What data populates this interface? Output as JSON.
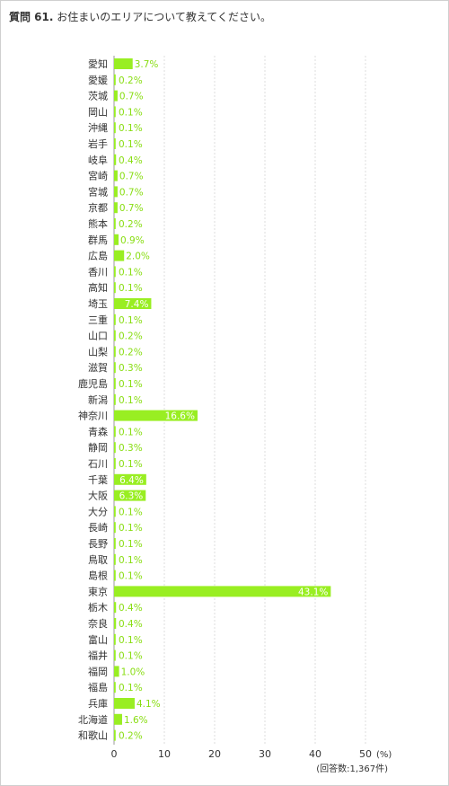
{
  "question": {
    "number": "質問 61.",
    "text": "お住まいのエリアについて教えてください。"
  },
  "colors": {
    "bar": "#99ee22",
    "label_outside": "#88dd11",
    "label_inside": "#ffffff",
    "grid": "#dddddd",
    "axis": "#999999"
  },
  "chart_data": {
    "type": "bar",
    "orientation": "horizontal",
    "categories": [
      "愛知",
      "愛媛",
      "茨城",
      "岡山",
      "沖縄",
      "岩手",
      "岐阜",
      "宮崎",
      "宮城",
      "京都",
      "熊本",
      "群馬",
      "広島",
      "香川",
      "高知",
      "埼玉",
      "三重",
      "山口",
      "山梨",
      "滋賀",
      "鹿児島",
      "新潟",
      "神奈川",
      "青森",
      "静岡",
      "石川",
      "千葉",
      "大阪",
      "大分",
      "長崎",
      "長野",
      "鳥取",
      "島根",
      "東京",
      "栃木",
      "奈良",
      "富山",
      "福井",
      "福岡",
      "福島",
      "兵庫",
      "北海道",
      "和歌山"
    ],
    "values": [
      3.7,
      0.2,
      0.7,
      0.1,
      0.1,
      0.1,
      0.4,
      0.7,
      0.7,
      0.7,
      0.2,
      0.9,
      2.0,
      0.1,
      0.1,
      7.4,
      0.1,
      0.2,
      0.2,
      0.3,
      0.1,
      0.1,
      16.6,
      0.1,
      0.3,
      0.1,
      6.4,
      6.3,
      0.1,
      0.1,
      0.1,
      0.1,
      0.1,
      43.1,
      0.4,
      0.4,
      0.1,
      0.1,
      1.0,
      0.1,
      4.1,
      1.6,
      0.2
    ],
    "value_labels": [
      "3.7%",
      "0.2%",
      "0.7%",
      "0.1%",
      "0.1%",
      "0.1%",
      "0.4%",
      "0.7%",
      "0.7%",
      "0.7%",
      "0.2%",
      "0.9%",
      "2.0%",
      "0.1%",
      "0.1%",
      "7.4%",
      "0.1%",
      "0.2%",
      "0.2%",
      "0.3%",
      "0.1%",
      "0.1%",
      "16.6%",
      "0.1%",
      "0.3%",
      "0.1%",
      "6.4%",
      "6.3%",
      "0.1%",
      "0.1%",
      "0.1%",
      "0.1%",
      "0.1%",
      "43.1%",
      "0.4%",
      "0.4%",
      "0.1%",
      "0.1%",
      "1.0%",
      "0.1%",
      "4.1%",
      "1.6%",
      "0.2%"
    ],
    "xlim": [
      0,
      50
    ],
    "xticks": [
      "0",
      "10",
      "20",
      "30",
      "40",
      "50"
    ],
    "x_unit": "(%)",
    "note": "(回答数:1,367件)",
    "grid": true
  }
}
